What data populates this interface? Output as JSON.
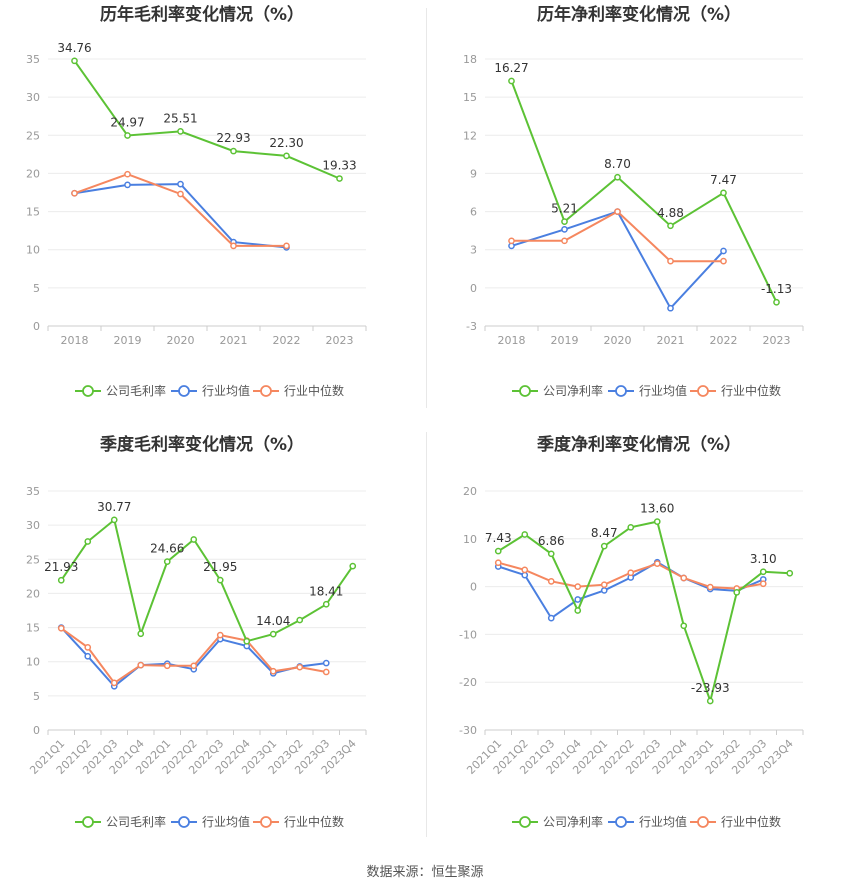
{
  "colors": {
    "company": "#5cc235",
    "avg": "#4a7fe0",
    "median": "#f5875f"
  },
  "chart_data": [
    {
      "type": "line",
      "title": "历年毛利率变化情况（%）",
      "categories": [
        "2018",
        "2019",
        "2020",
        "2021",
        "2022",
        "2023"
      ],
      "ylim": [
        0,
        35
      ],
      "yticks": [
        "0",
        "5",
        "10",
        "15",
        "20",
        "25",
        "30",
        "35"
      ],
      "grid": true,
      "legend_position": "bottom",
      "series": [
        {
          "name": "公司毛利率",
          "values": [
            34.76,
            24.97,
            25.51,
            22.93,
            22.3,
            19.33
          ],
          "labels": [
            "34.76",
            "24.97",
            "25.51",
            "22.93",
            "22.30",
            "19.33"
          ]
        },
        {
          "name": "行业均值",
          "values": [
            17.4,
            18.5,
            18.6,
            11.0,
            10.3,
            null
          ]
        },
        {
          "name": "行业中位数",
          "values": [
            17.4,
            19.9,
            17.3,
            10.5,
            10.5,
            null
          ]
        }
      ]
    },
    {
      "type": "line",
      "title": "历年净利率变化情况（%）",
      "categories": [
        "2018",
        "2019",
        "2020",
        "2021",
        "2022",
        "2023"
      ],
      "ylim": [
        -3,
        18
      ],
      "yticks": [
        "-3",
        "0",
        "3",
        "6",
        "9",
        "12",
        "15",
        "18"
      ],
      "grid": true,
      "legend_position": "bottom",
      "series": [
        {
          "name": "公司净利率",
          "values": [
            16.27,
            5.21,
            8.7,
            4.88,
            7.47,
            -1.13
          ],
          "labels": [
            "16.27",
            "5.21",
            "8.70",
            "4.88",
            "7.47",
            "-1.13"
          ]
        },
        {
          "name": "行业均值",
          "values": [
            3.3,
            4.6,
            6.0,
            -1.6,
            2.9,
            null
          ]
        },
        {
          "name": "行业中位数",
          "values": [
            3.7,
            3.7,
            6.0,
            2.1,
            2.1,
            null
          ]
        }
      ]
    },
    {
      "type": "line",
      "title": "季度毛利率变化情况（%）",
      "categories": [
        "2021Q1",
        "2021Q2",
        "2021Q3",
        "2021Q4",
        "2022Q1",
        "2022Q2",
        "2022Q3",
        "2022Q4",
        "2023Q1",
        "2023Q2",
        "2023Q3",
        "2023Q4"
      ],
      "ylim": [
        0,
        35
      ],
      "yticks": [
        "0",
        "5",
        "10",
        "15",
        "20",
        "25",
        "30",
        "35"
      ],
      "grid": true,
      "legend_position": "bottom",
      "series": [
        {
          "name": "公司毛利率",
          "values": [
            21.93,
            27.6,
            30.77,
            14.1,
            24.66,
            27.9,
            21.95,
            13.0,
            14.04,
            16.1,
            18.41,
            24.0
          ],
          "labels": [
            "21.93",
            "",
            "30.77",
            "",
            "24.66",
            "",
            "21.95",
            "",
            "14.04",
            "",
            "18.41",
            ""
          ]
        },
        {
          "name": "行业均值",
          "values": [
            15.0,
            10.8,
            6.4,
            9.5,
            9.7,
            8.9,
            13.3,
            12.3,
            8.3,
            9.3,
            9.8,
            null
          ]
        },
        {
          "name": "行业中位数",
          "values": [
            14.9,
            12.1,
            6.9,
            9.5,
            9.4,
            9.4,
            13.9,
            13.1,
            8.6,
            9.2,
            8.5,
            null
          ]
        }
      ]
    },
    {
      "type": "line",
      "title": "季度净利率变化情况（%）",
      "categories": [
        "2021Q1",
        "2021Q2",
        "2021Q3",
        "2021Q4",
        "2022Q1",
        "2022Q2",
        "2022Q3",
        "2022Q4",
        "2023Q1",
        "2023Q2",
        "2023Q3",
        "2023Q4"
      ],
      "ylim": [
        -30,
        20
      ],
      "yticks": [
        "-30",
        "-20",
        "-10",
        "0",
        "10",
        "20"
      ],
      "grid": true,
      "legend_position": "bottom",
      "series": [
        {
          "name": "公司净利率",
          "values": [
            7.43,
            10.9,
            6.86,
            -5.0,
            8.47,
            12.4,
            13.6,
            -8.2,
            -23.93,
            -1.2,
            3.1,
            2.8
          ],
          "labels": [
            "7.43",
            "",
            "6.86",
            "",
            "8.47",
            "",
            "13.60",
            "",
            "-23.93",
            "",
            "3.10",
            ""
          ]
        },
        {
          "name": "行业均值",
          "values": [
            4.2,
            2.4,
            -6.6,
            -2.7,
            -0.8,
            1.9,
            5.1,
            1.8,
            -0.5,
            -0.9,
            1.5,
            null
          ]
        },
        {
          "name": "行业中位数",
          "values": [
            5.0,
            3.5,
            1.1,
            0.0,
            0.4,
            2.9,
            4.8,
            1.8,
            -0.1,
            -0.4,
            0.6,
            null
          ]
        }
      ]
    }
  ],
  "footer": {
    "source": "数据来源：恒生聚源"
  }
}
